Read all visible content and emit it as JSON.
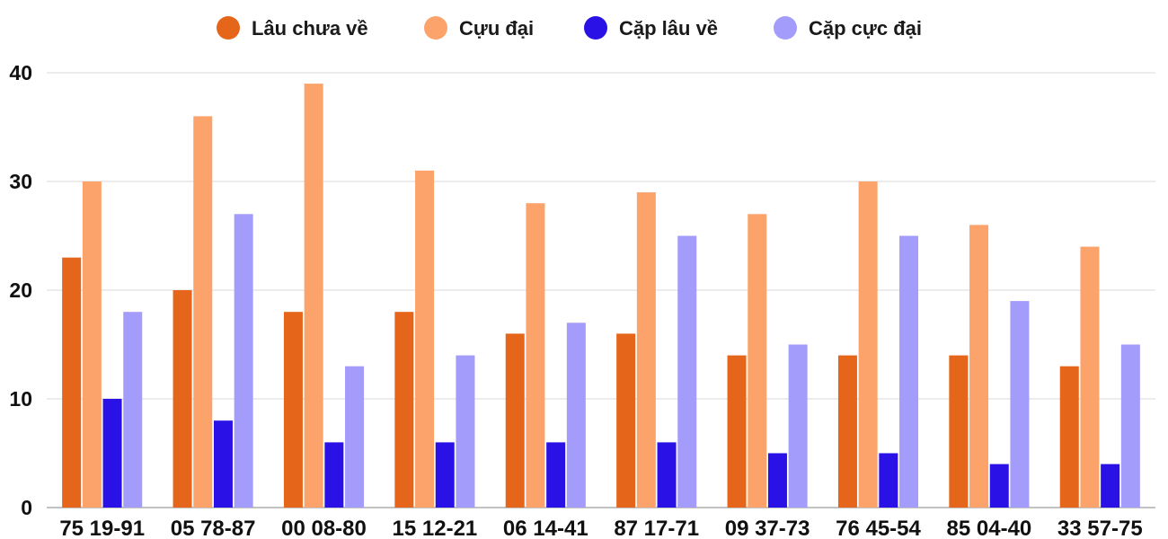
{
  "chart_data": {
    "type": "bar",
    "categories": [
      "75 19-91",
      "05 78-87",
      "00 08-80",
      "15 12-21",
      "06 14-41",
      "87 17-71",
      "09 37-73",
      "76 45-54",
      "85 04-40",
      "33 57-75"
    ],
    "series": [
      {
        "name": "Lâu chưa về",
        "color": "#e5661a",
        "values": [
          23,
          20,
          18,
          18,
          16,
          16,
          14,
          14,
          14,
          13
        ]
      },
      {
        "name": "Cựu đại",
        "color": "#fca36b",
        "values": [
          30,
          36,
          39,
          31,
          28,
          29,
          27,
          30,
          26,
          24
        ]
      },
      {
        "name": "Cặp lâu về",
        "color": "#2a12e6",
        "values": [
          10,
          8,
          6,
          6,
          6,
          6,
          5,
          5,
          4,
          4
        ]
      },
      {
        "name": "Cặp cực đại",
        "color": "#a49cfa",
        "values": [
          18,
          27,
          13,
          14,
          17,
          25,
          15,
          25,
          19,
          15
        ]
      }
    ],
    "yticks": [
      0,
      10,
      20,
      30,
      40
    ],
    "ylim": [
      0,
      40
    ],
    "grid": true,
    "legend_position": "top-center"
  }
}
